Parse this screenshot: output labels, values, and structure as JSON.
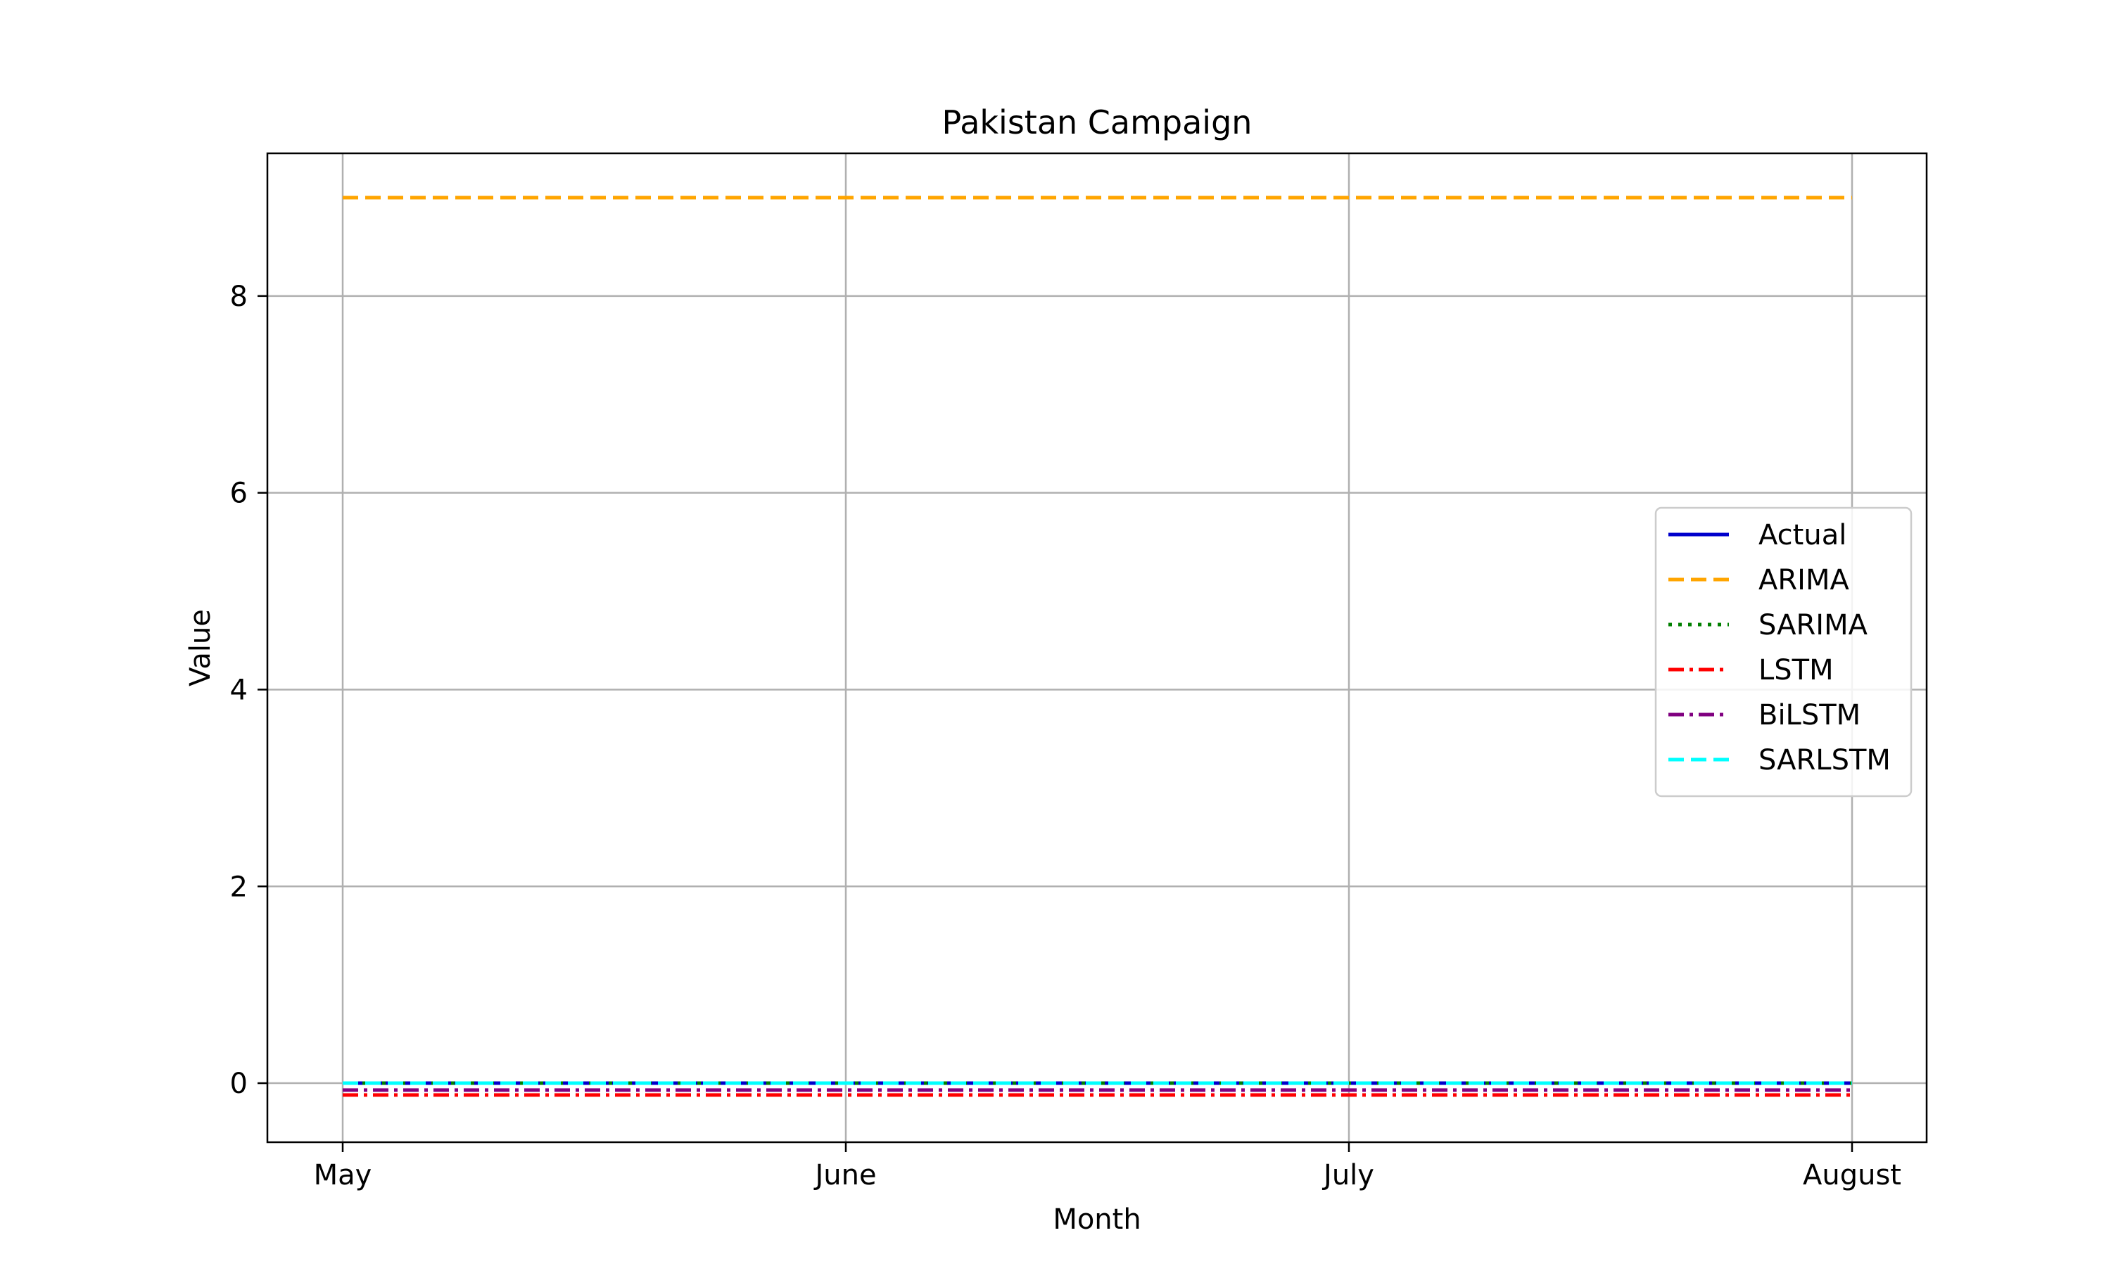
{
  "chart_data": {
    "type": "line",
    "title": "Pakistan Campaign",
    "xlabel": "Month",
    "ylabel": "Value",
    "categories": [
      "May",
      "June",
      "July",
      "August"
    ],
    "ylim": [
      -0.6,
      9.45
    ],
    "yticks": [
      0,
      2,
      4,
      6,
      8
    ],
    "grid": true,
    "legend_position": "center-right",
    "series": [
      {
        "name": "Actual",
        "values": [
          0,
          0,
          0,
          0
        ],
        "color": "#0000cc",
        "style": "solid"
      },
      {
        "name": "ARIMA",
        "values": [
          9,
          9,
          9,
          9
        ],
        "color": "#ffa500",
        "style": "dashed"
      },
      {
        "name": "SARIMA",
        "values": [
          0,
          0,
          0,
          0
        ],
        "color": "#008000",
        "style": "dotted"
      },
      {
        "name": "LSTM",
        "values": [
          -0.12,
          -0.12,
          -0.12,
          -0.12
        ],
        "color": "#ff0000",
        "style": "dashdot"
      },
      {
        "name": "BiLSTM",
        "values": [
          -0.07,
          -0.07,
          -0.07,
          -0.07
        ],
        "color": "#800080",
        "style": "dashdot"
      },
      {
        "name": "SARLSTM",
        "values": [
          0,
          0,
          0,
          0
        ],
        "color": "#00ffff",
        "style": "dashed"
      }
    ]
  }
}
